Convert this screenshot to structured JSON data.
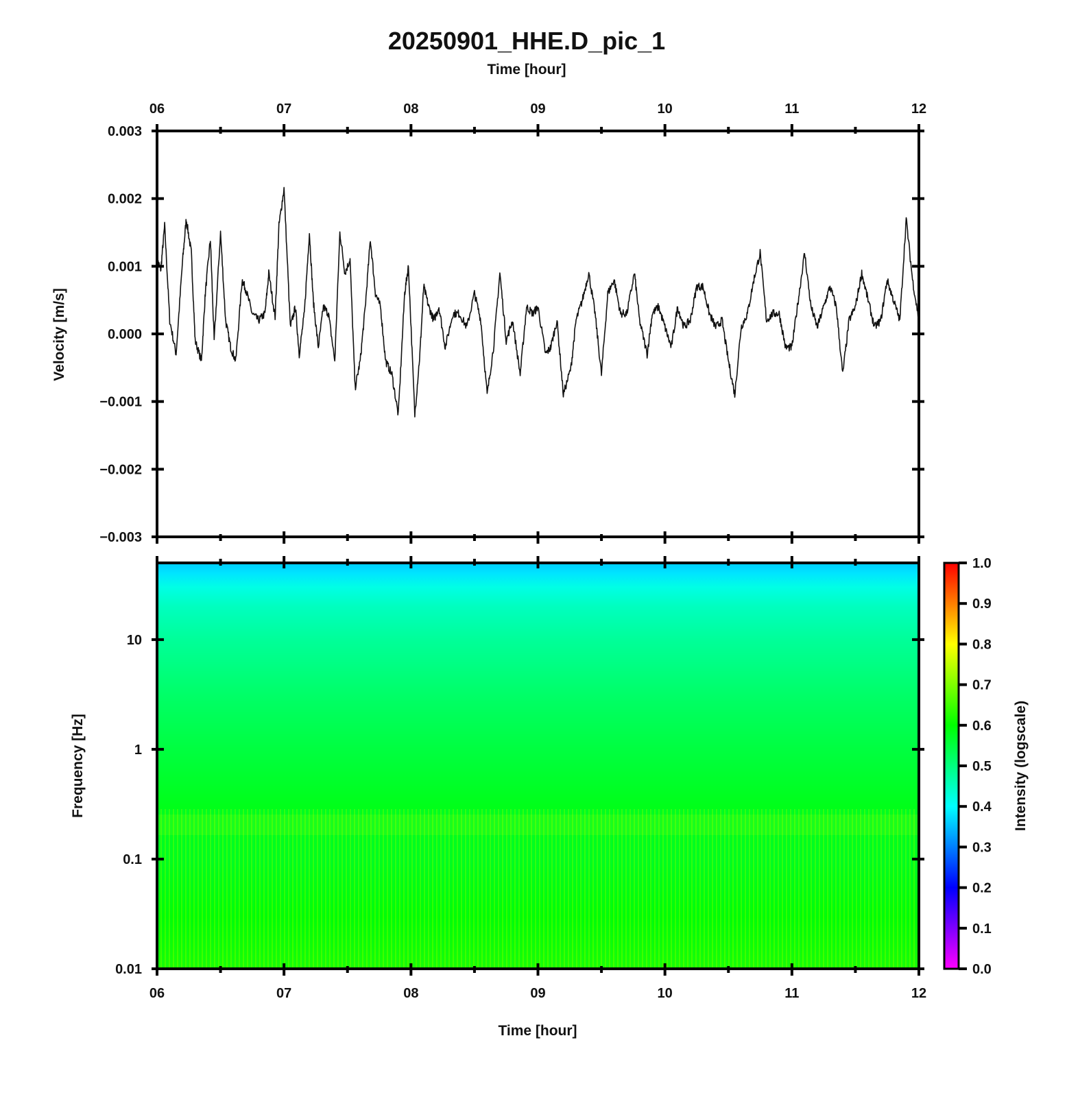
{
  "chart_data": [
    {
      "type": "line",
      "title": "20250901_HHE.D_pic_1",
      "top_axis_label": "Time [hour]",
      "ylabel": "Velocity [m/s]",
      "xlim": [
        "06",
        "12"
      ],
      "ylim": [
        -0.003,
        0.003
      ],
      "x_ticks": [
        "06",
        "07",
        "08",
        "09",
        "10",
        "11",
        "12"
      ],
      "y_ticks": [
        "0.003",
        "0.002",
        "0.001",
        "0.000",
        "−0.001",
        "−0.002",
        "−0.003"
      ],
      "series_color": "#111111",
      "x": [
        6.0,
        6.03,
        6.06,
        6.1,
        6.15,
        6.2,
        6.23,
        6.27,
        6.3,
        6.35,
        6.38,
        6.42,
        6.45,
        6.5,
        6.54,
        6.58,
        6.62,
        6.67,
        6.7,
        6.75,
        6.8,
        6.85,
        6.88,
        6.93,
        6.96,
        7.0,
        7.05,
        7.09,
        7.12,
        7.16,
        7.2,
        7.23,
        7.27,
        7.31,
        7.35,
        7.4,
        7.44,
        7.48,
        7.52,
        7.56,
        7.6,
        7.64,
        7.68,
        7.72,
        7.76,
        7.8,
        7.85,
        7.9,
        7.95,
        7.98,
        8.03,
        8.07,
        8.1,
        8.14,
        8.18,
        8.22,
        8.27,
        8.33,
        8.38,
        8.44,
        8.5,
        8.55,
        8.6,
        8.65,
        8.7,
        8.75,
        8.8,
        8.86,
        8.91,
        8.96,
        9.0,
        9.06,
        9.1,
        9.15,
        9.2,
        9.26,
        9.3,
        9.35,
        9.4,
        9.45,
        9.5,
        9.55,
        9.6,
        9.65,
        9.7,
        9.76,
        9.8,
        9.86,
        9.9,
        9.95,
        10.0,
        10.05,
        10.1,
        10.15,
        10.2,
        10.25,
        10.3,
        10.35,
        10.4,
        10.45,
        10.5,
        10.55,
        10.6,
        10.65,
        10.7,
        10.75,
        10.8,
        10.85,
        10.9,
        10.95,
        11.0,
        11.05,
        11.1,
        11.15,
        11.2,
        11.25,
        11.3,
        11.35,
        11.4,
        11.45,
        11.5,
        11.55,
        11.6,
        11.65,
        11.7,
        11.75,
        11.8,
        11.85,
        11.9,
        11.95,
        12.0
      ],
      "y": [
        0.0011,
        0.00095,
        0.0016,
        0.0002,
        -0.0003,
        0.00105,
        0.0017,
        0.0012,
        -0.0001,
        -0.0004,
        0.0006,
        0.0014,
        -0.0001,
        0.0015,
        0.0002,
        -0.0002,
        -0.0004,
        0.0008,
        0.00065,
        0.0003,
        0.0002,
        0.0003,
        0.0009,
        0.00025,
        0.0016,
        0.00215,
        0.0001,
        0.0004,
        -0.0003,
        0.0003,
        0.0015,
        0.0005,
        -0.0002,
        0.0004,
        0.0003,
        -0.0004,
        0.0015,
        0.0009,
        0.0011,
        -0.0008,
        -0.0004,
        0.0004,
        0.0014,
        0.0006,
        0.0004,
        -0.0004,
        -0.0006,
        -0.0012,
        0.0006,
        0.001,
        -0.0012,
        -0.0003,
        0.0007,
        0.0004,
        0.0002,
        0.0004,
        -0.0002,
        0.0003,
        0.0003,
        0.0001,
        0.0006,
        0.0002,
        -0.0009,
        -0.0002,
        0.0009,
        -0.0001,
        0.0002,
        -0.0006,
        0.0004,
        0.0003,
        0.0004,
        -0.0003,
        -0.0002,
        0.0002,
        -0.0009,
        -0.0005,
        0.0002,
        0.0005,
        0.0009,
        0.0003,
        -0.0006,
        0.0006,
        0.0008,
        0.0003,
        0.0003,
        0.0009,
        0.0002,
        -0.0003,
        0.0003,
        0.0004,
        0.0001,
        -0.0002,
        0.0004,
        0.0001,
        0.0002,
        0.0007,
        0.0007,
        0.0003,
        0.0001,
        0.0002,
        -0.0004,
        -0.0009,
        0.0001,
        0.0003,
        0.0008,
        0.0012,
        0.0002,
        0.0003,
        0.0003,
        -0.0002,
        -0.0002,
        0.0005,
        0.0012,
        0.0004,
        0.0001,
        0.0004,
        0.0007,
        0.0004,
        -0.0006,
        0.0002,
        0.0004,
        0.0009,
        0.0005,
        0.0001,
        0.0002,
        0.0008,
        0.0005,
        0.0002,
        0.0017,
        0.0008,
        0.0002
      ]
    },
    {
      "type": "heatmap",
      "xlabel": "Time [hour]",
      "ylabel": "Frequency [Hz]",
      "xlim": [
        "06",
        "12"
      ],
      "y_scale": "log",
      "ylim": [
        0.01,
        50
      ],
      "x_ticks": [
        "06",
        "07",
        "08",
        "09",
        "10",
        "11",
        "12"
      ],
      "y_ticks": [
        "10",
        "1",
        "0.1",
        "0.01"
      ],
      "colorbar": {
        "label": "Intensity (logscale)",
        "range": [
          0.0,
          1.0
        ],
        "ticks": [
          "1.0",
          "0.9",
          "0.8",
          "0.7",
          "0.6",
          "0.5",
          "0.4",
          "0.3",
          "0.2",
          "0.1",
          "0.0"
        ],
        "colors": [
          "#ff00ff",
          "#7f00ff",
          "#0000ff",
          "#007fff",
          "#00ffff",
          "#00ff7f",
          "#00ff00",
          "#7fff00",
          "#ffff00",
          "#ff7f00",
          "#ff0000"
        ]
      },
      "intensity_profile": {
        "frequency_hz": [
          50,
          40,
          30,
          20,
          10,
          3,
          1,
          0.3,
          0.1,
          0.03,
          0.01
        ],
        "intensity": [
          0.36,
          0.38,
          0.42,
          0.45,
          0.48,
          0.52,
          0.55,
          0.58,
          0.58,
          0.6,
          0.62
        ]
      }
    }
  ]
}
